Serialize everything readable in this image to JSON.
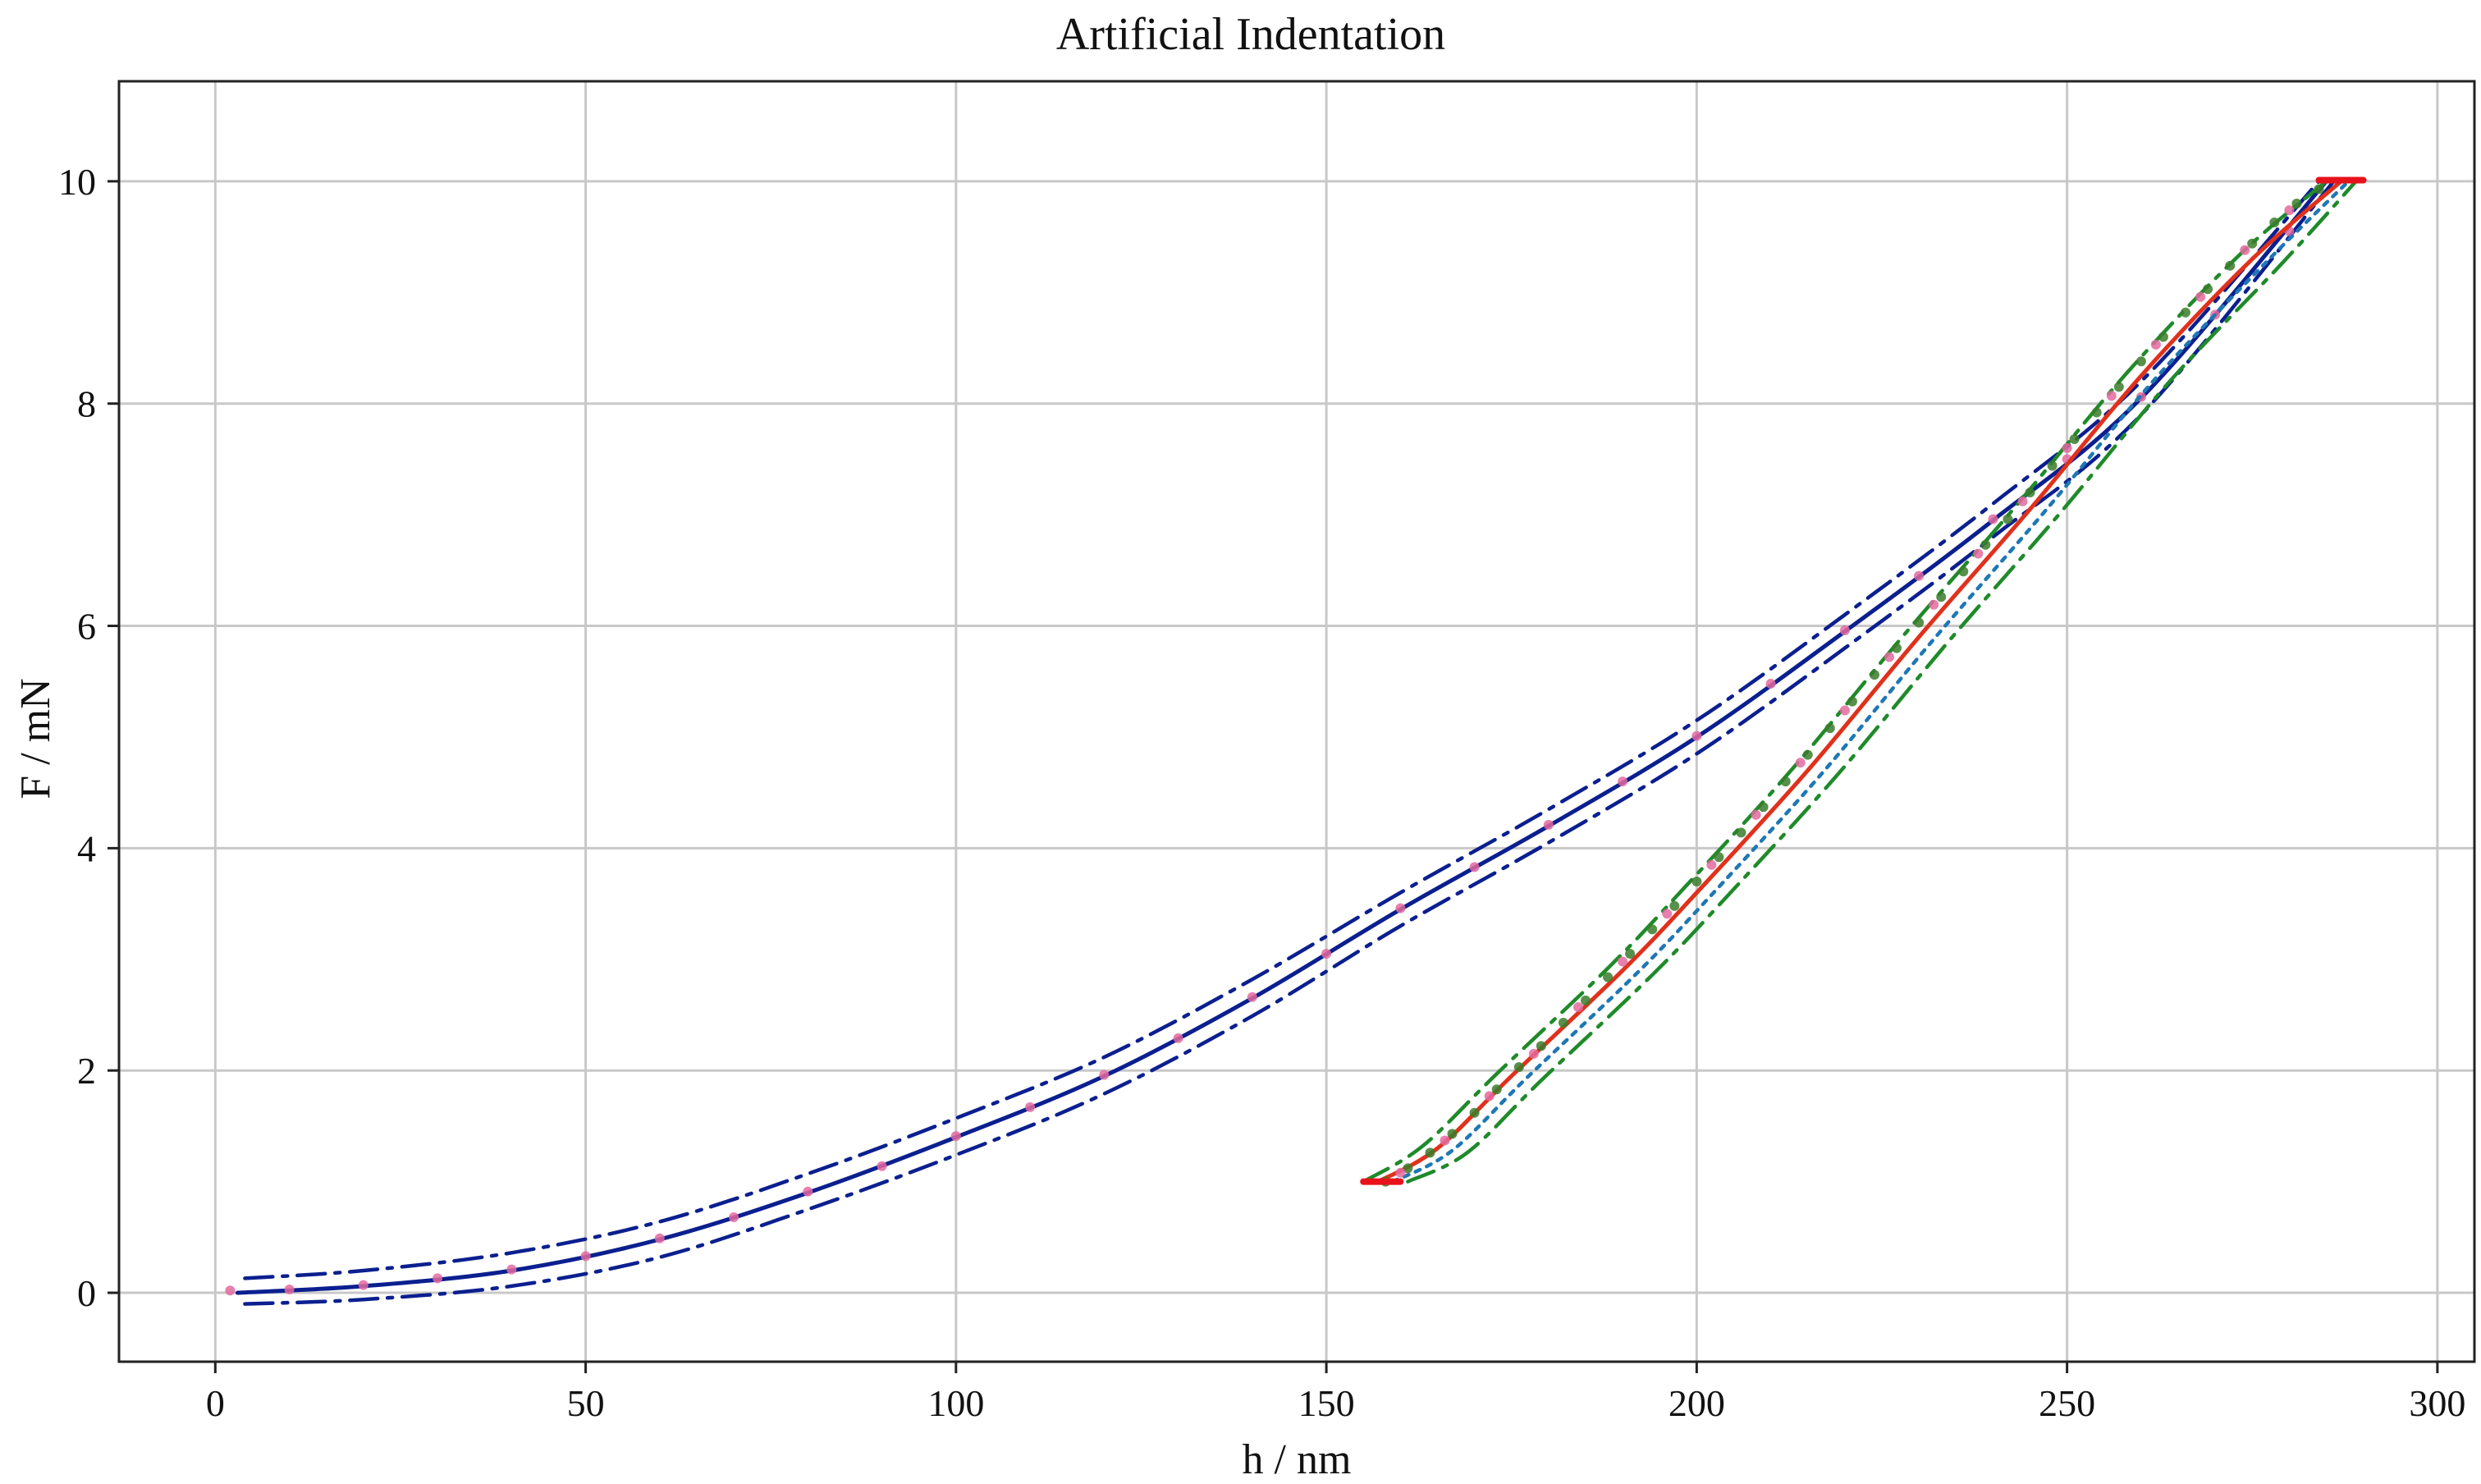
{
  "chart_data": {
    "type": "line",
    "title": "Artificial Indentation",
    "xlabel": "h / nm",
    "ylabel": "F / mN",
    "xlim": [
      -13,
      305
    ],
    "ylim": [
      -0.62,
      10.9
    ],
    "xticks": [
      0,
      50,
      100,
      150,
      200,
      250,
      300
    ],
    "yticks": [
      0,
      2,
      4,
      6,
      8,
      10
    ],
    "grid": true,
    "legend": "none",
    "series": [
      {
        "role": "loading-fit",
        "color": "#0b1f8f",
        "style": "solid",
        "points": [
          [
            3,
            0.0
          ],
          [
            20,
            0.06
          ],
          [
            40,
            0.2
          ],
          [
            60,
            0.48
          ],
          [
            80,
            0.9
          ],
          [
            100,
            1.4
          ],
          [
            120,
            1.95
          ],
          [
            140,
            2.65
          ],
          [
            160,
            3.45
          ],
          [
            180,
            4.2
          ],
          [
            200,
            5.0
          ],
          [
            220,
            5.95
          ],
          [
            240,
            6.95
          ],
          [
            260,
            8.05
          ],
          [
            285,
            10.0
          ]
        ]
      },
      {
        "role": "loading-upper-bound",
        "color": "#0b1f8f",
        "style": "dashdot",
        "points": [
          [
            4,
            0.13
          ],
          [
            20,
            0.2
          ],
          [
            40,
            0.36
          ],
          [
            60,
            0.64
          ],
          [
            80,
            1.07
          ],
          [
            100,
            1.57
          ],
          [
            120,
            2.12
          ],
          [
            140,
            2.82
          ],
          [
            160,
            3.6
          ],
          [
            180,
            4.35
          ],
          [
            200,
            5.15
          ],
          [
            220,
            6.1
          ],
          [
            240,
            7.1
          ],
          [
            260,
            8.2
          ],
          [
            284,
            10.0
          ]
        ]
      },
      {
        "role": "loading-lower-bound",
        "color": "#0b1f8f",
        "style": "dashdot",
        "points": [
          [
            4,
            -0.1
          ],
          [
            20,
            -0.06
          ],
          [
            40,
            0.06
          ],
          [
            60,
            0.32
          ],
          [
            80,
            0.75
          ],
          [
            100,
            1.24
          ],
          [
            120,
            1.79
          ],
          [
            140,
            2.49
          ],
          [
            160,
            3.3
          ],
          [
            180,
            4.05
          ],
          [
            200,
            4.85
          ],
          [
            220,
            5.8
          ],
          [
            240,
            6.8
          ],
          [
            260,
            7.9
          ],
          [
            286,
            10.0
          ]
        ]
      },
      {
        "role": "loading-measured",
        "color": "#e46aa0",
        "style": "dots",
        "points": [
          [
            2,
            0.02
          ],
          [
            10,
            0.03
          ],
          [
            20,
            0.07
          ],
          [
            30,
            0.13
          ],
          [
            40,
            0.21
          ],
          [
            50,
            0.33
          ],
          [
            60,
            0.49
          ],
          [
            70,
            0.68
          ],
          [
            80,
            0.91
          ],
          [
            90,
            1.14
          ],
          [
            100,
            1.41
          ],
          [
            110,
            1.67
          ],
          [
            120,
            1.96
          ],
          [
            130,
            2.29
          ],
          [
            140,
            2.66
          ],
          [
            150,
            3.05
          ],
          [
            160,
            3.46
          ],
          [
            170,
            3.83
          ],
          [
            180,
            4.21
          ],
          [
            190,
            4.6
          ],
          [
            200,
            5.01
          ],
          [
            210,
            5.48
          ],
          [
            220,
            5.96
          ],
          [
            230,
            6.45
          ],
          [
            240,
            6.96
          ],
          [
            250,
            7.5
          ],
          [
            260,
            8.06
          ],
          [
            270,
            8.8
          ],
          [
            280,
            9.55
          ]
        ]
      },
      {
        "role": "unloading-fit",
        "color": "#e0311c",
        "style": "solid",
        "points": [
          [
            157,
            1.0
          ],
          [
            165,
            1.3
          ],
          [
            175,
            1.95
          ],
          [
            190,
            2.9
          ],
          [
            200,
            3.6
          ],
          [
            215,
            4.7
          ],
          [
            230,
            5.9
          ],
          [
            245,
            7.05
          ],
          [
            260,
            8.25
          ],
          [
            275,
            9.3
          ],
          [
            287,
            10.0
          ]
        ]
      },
      {
        "role": "unloading-upper-bound",
        "color": "#1f8a2a",
        "style": "dashdot",
        "points": [
          [
            155,
            1.0
          ],
          [
            163,
            1.32
          ],
          [
            173,
            1.97
          ],
          [
            188,
            2.92
          ],
          [
            198,
            3.62
          ],
          [
            213,
            4.72
          ],
          [
            228,
            5.92
          ],
          [
            243,
            7.07
          ],
          [
            258,
            8.27
          ],
          [
            273,
            9.32
          ],
          [
            285,
            10.0
          ]
        ]
      },
      {
        "role": "unloading-lower-bound",
        "color": "#1f8a2a",
        "style": "dashdot",
        "points": [
          [
            161,
            1.0
          ],
          [
            169,
            1.26
          ],
          [
            179,
            1.91
          ],
          [
            194,
            2.86
          ],
          [
            204,
            3.56
          ],
          [
            219,
            4.66
          ],
          [
            234,
            5.86
          ],
          [
            249,
            7.01
          ],
          [
            264,
            8.21
          ],
          [
            279,
            9.26
          ],
          [
            289,
            10.0
          ]
        ]
      },
      {
        "role": "unloading-alt-bound",
        "color": "#1f77b4",
        "style": "dotted",
        "points": [
          [
            159,
            1.0
          ],
          [
            167,
            1.28
          ],
          [
            177,
            1.93
          ],
          [
            192,
            2.88
          ],
          [
            202,
            3.58
          ],
          [
            217,
            4.68
          ],
          [
            232,
            5.88
          ],
          [
            247,
            7.03
          ],
          [
            262,
            8.23
          ],
          [
            277,
            9.28
          ],
          [
            288,
            10.0
          ]
        ]
      },
      {
        "role": "unloading-measured",
        "color": "#3a7d2a",
        "style": "dots",
        "points": [
          [
            158,
            1.0
          ],
          [
            161,
            1.12
          ],
          [
            164,
            1.26
          ],
          [
            167,
            1.43
          ],
          [
            170,
            1.62
          ],
          [
            173,
            1.83
          ],
          [
            176,
            2.03
          ],
          [
            179,
            2.22
          ],
          [
            182,
            2.43
          ],
          [
            185,
            2.63
          ],
          [
            188,
            2.84
          ],
          [
            191,
            3.05
          ],
          [
            194,
            3.27
          ],
          [
            197,
            3.48
          ],
          [
            200,
            3.7
          ],
          [
            203,
            3.92
          ],
          [
            206,
            4.14
          ],
          [
            209,
            4.37
          ],
          [
            212,
            4.6
          ],
          [
            215,
            4.84
          ],
          [
            218,
            5.08
          ],
          [
            221,
            5.32
          ],
          [
            224,
            5.56
          ],
          [
            227,
            5.8
          ],
          [
            230,
            6.03
          ],
          [
            233,
            6.26
          ],
          [
            236,
            6.49
          ],
          [
            239,
            6.73
          ],
          [
            242,
            6.96
          ],
          [
            245,
            7.2
          ],
          [
            248,
            7.44
          ],
          [
            251,
            7.68
          ],
          [
            254,
            7.92
          ],
          [
            257,
            8.15
          ],
          [
            260,
            8.38
          ],
          [
            263,
            8.6
          ],
          [
            266,
            8.82
          ],
          [
            269,
            9.03
          ],
          [
            272,
            9.24
          ],
          [
            275,
            9.44
          ],
          [
            278,
            9.63
          ],
          [
            281,
            9.8
          ],
          [
            284,
            9.93
          ]
        ]
      },
      {
        "role": "unloading-measured-overlay",
        "color": "#e46aa0",
        "style": "dots",
        "points": [
          [
            160,
            1.08
          ],
          [
            166,
            1.37
          ],
          [
            172,
            1.77
          ],
          [
            178,
            2.15
          ],
          [
            184,
            2.57
          ],
          [
            190,
            2.98
          ],
          [
            196,
            3.41
          ],
          [
            202,
            3.85
          ],
          [
            208,
            4.3
          ],
          [
            214,
            4.77
          ],
          [
            220,
            5.24
          ],
          [
            226,
            5.72
          ],
          [
            232,
            6.19
          ],
          [
            238,
            6.65
          ],
          [
            244,
            7.12
          ],
          [
            250,
            7.6
          ],
          [
            256,
            8.07
          ],
          [
            262,
            8.53
          ],
          [
            268,
            8.96
          ],
          [
            274,
            9.38
          ],
          [
            280,
            9.74
          ]
        ]
      },
      {
        "role": "unloading-start-marker",
        "color": "#e8121c",
        "style": "segment",
        "points": [
          [
            155,
            1.0
          ],
          [
            160,
            1.0
          ]
        ]
      },
      {
        "role": "peak-marker",
        "color": "#e8121c",
        "style": "segment",
        "points": [
          [
            284,
            10.01
          ],
          [
            290,
            10.01
          ]
        ]
      }
    ]
  }
}
